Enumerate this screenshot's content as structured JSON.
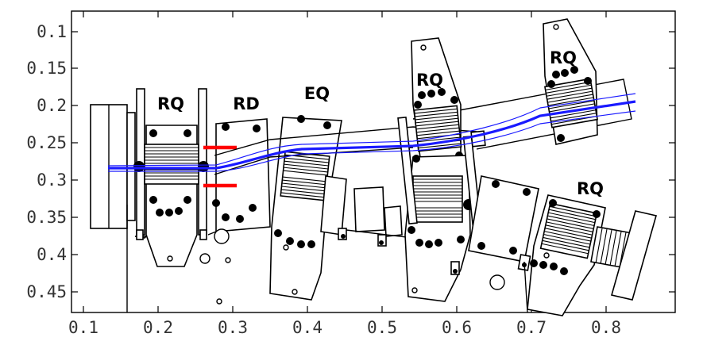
{
  "axes": {
    "x_ticks": [
      "0.1",
      "0.2",
      "0.3",
      "0.4",
      "0.5",
      "0.6",
      "0.7",
      "0.8"
    ],
    "y_ticks": [
      "0.1",
      "0.15",
      "0.2",
      "0.25",
      "0.3",
      "0.35",
      "0.4",
      "0.45"
    ]
  },
  "magnets": [
    {
      "label": "RQ"
    },
    {
      "label": "RD"
    },
    {
      "label": "EQ"
    },
    {
      "label": "RQ"
    },
    {
      "label": "RQ"
    },
    {
      "label": "RQ"
    }
  ],
  "colors": {
    "beam": "#1a1aff",
    "marker": "#ff0000",
    "outline": "#000000"
  }
}
